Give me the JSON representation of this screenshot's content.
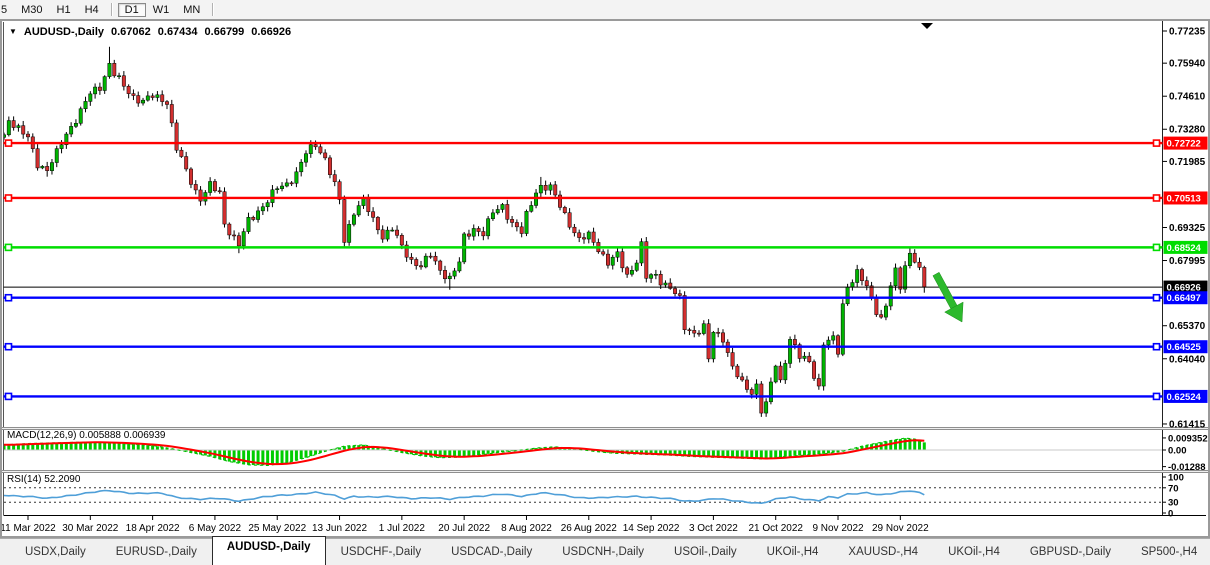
{
  "icons": {
    "symbol_marker": "▼",
    "top_marker": "▼",
    "tab_scroll_left": "◄",
    "tab_scroll_right": "►"
  },
  "toolbar": {
    "timeframes": [
      "5",
      "M30",
      "H1",
      "H4",
      "D1",
      "W1",
      "MN"
    ],
    "active": "D1"
  },
  "chart_data": {
    "type": "candlestick",
    "symbol": "AUDUSD-,Daily",
    "ohlc": {
      "open": "0.67062",
      "high": "0.67434",
      "low": "0.66799",
      "close": "0.66926"
    },
    "x_tick_labels": [
      "11 Mar 2022",
      "30 Mar 2022",
      "18 Apr 2022",
      "6 May 2022",
      "25 May 2022",
      "13 Jun 2022",
      "1 Jul 2022",
      "20 Jul 2022",
      "8 Aug 2022",
      "26 Aug 2022",
      "14 Sep 2022",
      "3 Oct 2022",
      "21 Oct 2022",
      "9 Nov 2022",
      "29 Nov 2022"
    ],
    "y_axis": {
      "tick_labels": [
        "0.77235",
        "0.75940",
        "0.74610",
        "0.73280",
        "0.71985",
        "0.69325",
        "0.67995",
        "0.65370",
        "0.64040",
        "0.61415"
      ],
      "tick_prices": [
        0.77235,
        0.7594,
        0.7461,
        0.7328,
        0.71985,
        0.69325,
        0.67995,
        0.6537,
        0.6404,
        0.61415
      ],
      "range_top": 0.77235,
      "range_bottom": 0.61415
    },
    "levels": [
      {
        "label": "0.72722",
        "price": 0.72722,
        "color": "#ff0000",
        "kind": "resistance"
      },
      {
        "label": "0.70513",
        "price": 0.70513,
        "color": "#ff0000",
        "kind": "resistance"
      },
      {
        "label": "0.68524",
        "price": 0.68524,
        "color": "#00dd00",
        "kind": "resistance"
      },
      {
        "label": "0.66926",
        "price": 0.66926,
        "color": "#000000",
        "kind": "current-price"
      },
      {
        "label": "0.66497",
        "price": 0.66497,
        "color": "#0000ff",
        "kind": "support"
      },
      {
        "label": "0.64525",
        "price": 0.64525,
        "color": "#0000ff",
        "kind": "support"
      },
      {
        "label": "0.62524",
        "price": 0.62524,
        "color": "#0000ff",
        "kind": "support"
      }
    ],
    "day_range": [
      -5,
      187
    ],
    "candle_close_anchors": [
      [
        -5,
        0.73
      ],
      [
        -4,
        0.737
      ],
      [
        -2,
        0.733
      ],
      [
        0,
        0.729
      ],
      [
        2,
        0.719
      ],
      [
        4,
        0.7165
      ],
      [
        6,
        0.723
      ],
      [
        8,
        0.731
      ],
      [
        11,
        0.74
      ],
      [
        13,
        0.747
      ],
      [
        15,
        0.75
      ],
      [
        17,
        0.759
      ],
      [
        18,
        0.755
      ],
      [
        20,
        0.75
      ],
      [
        22,
        0.746
      ],
      [
        24,
        0.744
      ],
      [
        26,
        0.746
      ],
      [
        28,
        0.745
      ],
      [
        29,
        0.744
      ],
      [
        31,
        0.725
      ],
      [
        33,
        0.716
      ],
      [
        35,
        0.708
      ],
      [
        36,
        0.705
      ],
      [
        38,
        0.71
      ],
      [
        40,
        0.707
      ],
      [
        41,
        0.695
      ],
      [
        44,
        0.686
      ],
      [
        46,
        0.696
      ],
      [
        48,
        0.7
      ],
      [
        50,
        0.704
      ],
      [
        52,
        0.709
      ],
      [
        54,
        0.711
      ],
      [
        56,
        0.715
      ],
      [
        58,
        0.723
      ],
      [
        60,
        0.727
      ],
      [
        62,
        0.721
      ],
      [
        64,
        0.71
      ],
      [
        65,
        0.704
      ],
      [
        66,
        0.688
      ],
      [
        68,
        0.7
      ],
      [
        70,
        0.704
      ],
      [
        72,
        0.696
      ],
      [
        74,
        0.69
      ],
      [
        76,
        0.693
      ],
      [
        78,
        0.685
      ],
      [
        80,
        0.68
      ],
      [
        82,
        0.678
      ],
      [
        84,
        0.682
      ],
      [
        86,
        0.676
      ],
      [
        88,
        0.673
      ],
      [
        90,
        0.679
      ],
      [
        91,
        0.689
      ],
      [
        93,
        0.693
      ],
      [
        95,
        0.691
      ],
      [
        97,
        0.699
      ],
      [
        99,
        0.702
      ],
      [
        101,
        0.695
      ],
      [
        103,
        0.691
      ],
      [
        104,
        0.698
      ],
      [
        106,
        0.708
      ],
      [
        107,
        0.71
      ],
      [
        109,
        0.709
      ],
      [
        111,
        0.702
      ],
      [
        113,
        0.695
      ],
      [
        115,
        0.688
      ],
      [
        117,
        0.69
      ],
      [
        119,
        0.685
      ],
      [
        121,
        0.679
      ],
      [
        123,
        0.682
      ],
      [
        125,
        0.674
      ],
      [
        127,
        0.68
      ],
      [
        128,
        0.686
      ],
      [
        129,
        0.673
      ],
      [
        131,
        0.674
      ],
      [
        132,
        0.672
      ],
      [
        134,
        0.669
      ],
      [
        136,
        0.664
      ],
      [
        137,
        0.653
      ],
      [
        139,
        0.651
      ],
      [
        141,
        0.653
      ],
      [
        142,
        0.64
      ],
      [
        143,
        0.651
      ],
      [
        145,
        0.649
      ],
      [
        147,
        0.637
      ],
      [
        149,
        0.63
      ],
      [
        151,
        0.627
      ],
      [
        152,
        0.63
      ],
      [
        153,
        0.62
      ],
      [
        154,
        0.622
      ],
      [
        156,
        0.638
      ],
      [
        157,
        0.631
      ],
      [
        159,
        0.649
      ],
      [
        161,
        0.641
      ],
      [
        163,
        0.639
      ],
      [
        165,
        0.629
      ],
      [
        166,
        0.647
      ],
      [
        168,
        0.648
      ],
      [
        169,
        0.643
      ],
      [
        170,
        0.662
      ],
      [
        171,
        0.67
      ],
      [
        173,
        0.675
      ],
      [
        175,
        0.669
      ],
      [
        177,
        0.66
      ],
      [
        178,
        0.657
      ],
      [
        179,
        0.662
      ],
      [
        180,
        0.67
      ],
      [
        181,
        0.675
      ],
      [
        182,
        0.669
      ],
      [
        183,
        0.678
      ],
      [
        184,
        0.683
      ],
      [
        185,
        0.681
      ],
      [
        186,
        0.676
      ],
      [
        187,
        0.66926
      ]
    ],
    "high_overrides": [
      [
        17,
        0.766
      ],
      [
        38,
        0.7135
      ],
      [
        60,
        0.7283
      ],
      [
        107,
        0.7136
      ],
      [
        184,
        0.685
      ],
      [
        185,
        0.6845
      ]
    ],
    "low_overrides": [
      [
        4,
        0.7137
      ],
      [
        44,
        0.6829
      ],
      [
        66,
        0.685
      ],
      [
        88,
        0.6682
      ],
      [
        142,
        0.639
      ],
      [
        153,
        0.617
      ],
      [
        178,
        0.6565
      ],
      [
        187,
        0.667
      ]
    ],
    "annotations": {
      "down_arrow_color": "#2db92d"
    },
    "indicators": {
      "macd": {
        "label": "MACD(12,26,9) 0.005888 0.006939",
        "axis_labels": [
          "0.009352",
          "0.00",
          "-0.01288"
        ],
        "axis_values": [
          0.009352,
          0.0,
          -0.01288
        ],
        "value_anchors": [
          [
            -5,
            0.004
          ],
          [
            0,
            0.005
          ],
          [
            8,
            0.0058
          ],
          [
            14,
            0.0062
          ],
          [
            20,
            0.005
          ],
          [
            26,
            0.0035
          ],
          [
            30,
            0.001
          ],
          [
            34,
            -0.002
          ],
          [
            38,
            -0.005
          ],
          [
            42,
            -0.009
          ],
          [
            46,
            -0.0115
          ],
          [
            50,
            -0.012
          ],
          [
            54,
            -0.01
          ],
          [
            58,
            -0.006
          ],
          [
            62,
            -0.001
          ],
          [
            66,
            0.003
          ],
          [
            70,
            0.004
          ],
          [
            74,
            0.001
          ],
          [
            78,
            -0.002
          ],
          [
            82,
            -0.0045
          ],
          [
            86,
            -0.006
          ],
          [
            90,
            -0.0055
          ],
          [
            94,
            -0.004
          ],
          [
            98,
            -0.002
          ],
          [
            102,
            -0.0005
          ],
          [
            106,
            0.0015
          ],
          [
            110,
            0.0025
          ],
          [
            114,
            0.001
          ],
          [
            118,
            -0.001
          ],
          [
            122,
            -0.0025
          ],
          [
            126,
            -0.003
          ],
          [
            130,
            -0.0035
          ],
          [
            134,
            -0.004
          ],
          [
            138,
            -0.005
          ],
          [
            142,
            -0.0055
          ],
          [
            146,
            -0.006
          ],
          [
            150,
            -0.0065
          ],
          [
            154,
            -0.007
          ],
          [
            158,
            -0.005
          ],
          [
            162,
            -0.004
          ],
          [
            166,
            -0.003
          ],
          [
            170,
            -0.001
          ],
          [
            174,
            0.003
          ],
          [
            178,
            0.006
          ],
          [
            181,
            0.008
          ],
          [
            183,
            0.0092
          ],
          [
            185,
            0.0085
          ],
          [
            187,
            0.0059
          ]
        ],
        "bar_color": "#00cc00",
        "signal_color": "#ff0000",
        "line_color": "#00bb00"
      },
      "rsi": {
        "label": "RSI(14) 52.2090",
        "axis_labels": [
          "100",
          "70",
          "30",
          "0"
        ],
        "axis_values": [
          100,
          70,
          30,
          0
        ],
        "guide_levels": [
          70,
          30
        ],
        "value_anchors": [
          [
            -5,
            50
          ],
          [
            0,
            46
          ],
          [
            4,
            40
          ],
          [
            8,
            48
          ],
          [
            14,
            58
          ],
          [
            17,
            62
          ],
          [
            22,
            55
          ],
          [
            28,
            54
          ],
          [
            31,
            44
          ],
          [
            36,
            38
          ],
          [
            40,
            40
          ],
          [
            44,
            34
          ],
          [
            48,
            42
          ],
          [
            52,
            48
          ],
          [
            58,
            55
          ],
          [
            60,
            57
          ],
          [
            64,
            48
          ],
          [
            66,
            40
          ],
          [
            68,
            47
          ],
          [
            72,
            44
          ],
          [
            76,
            45
          ],
          [
            80,
            41
          ],
          [
            84,
            42
          ],
          [
            88,
            38
          ],
          [
            91,
            45
          ],
          [
            95,
            47
          ],
          [
            99,
            52
          ],
          [
            103,
            47
          ],
          [
            107,
            56
          ],
          [
            111,
            50
          ],
          [
            115,
            43
          ],
          [
            119,
            42
          ],
          [
            123,
            44
          ],
          [
            127,
            47
          ],
          [
            131,
            42
          ],
          [
            135,
            38
          ],
          [
            137,
            33
          ],
          [
            141,
            36
          ],
          [
            143,
            40
          ],
          [
            147,
            34
          ],
          [
            151,
            30
          ],
          [
            153,
            27
          ],
          [
            156,
            38
          ],
          [
            159,
            44
          ],
          [
            161,
            40
          ],
          [
            165,
            35
          ],
          [
            167,
            44
          ],
          [
            169,
            42
          ],
          [
            171,
            52
          ],
          [
            175,
            57
          ],
          [
            178,
            50
          ],
          [
            181,
            55
          ],
          [
            184,
            62
          ],
          [
            186,
            57
          ],
          [
            187,
            52.2
          ]
        ],
        "line_color": "#4f9fd8"
      }
    },
    "colors": {
      "bull": "#00b300",
      "bear": "#d22f2f",
      "wick": "#000000",
      "badge_text": "#ffffff"
    }
  },
  "tabs": {
    "items": [
      "USDX,Daily",
      "EURUSD-,Daily",
      "AUDUSD-,Daily",
      "USDCHF-,Daily",
      "USDCAD-,Daily",
      "USDCNH-,Daily",
      "USOil-,Daily",
      "UKOil-,H4",
      "XAUUSD-,H4",
      "UKOil-,H4",
      "GBPUSD-,Daily",
      "SP500-,H4"
    ],
    "active_index": 2
  }
}
